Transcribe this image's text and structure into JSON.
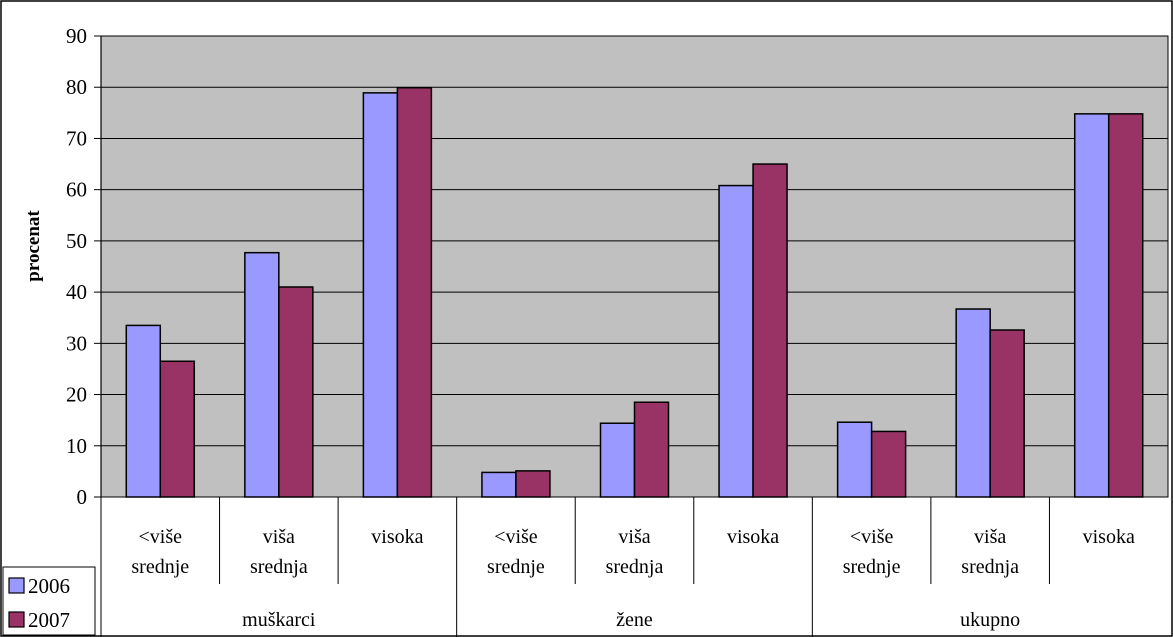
{
  "chart_data": {
    "type": "bar",
    "ylabel": "procenat",
    "ylim": [
      0,
      90
    ],
    "ytick_step": 10,
    "grid": true,
    "legend_placement": "bottom-left",
    "groups": [
      {
        "name": "muškarci",
        "categories": [
          [
            "<više",
            "srednje"
          ],
          [
            "viša",
            "srednja"
          ],
          [
            "visoka"
          ]
        ]
      },
      {
        "name": "žene",
        "categories": [
          [
            "<više",
            "srednje"
          ],
          [
            "viša",
            "srednja"
          ],
          [
            "visoka"
          ]
        ]
      },
      {
        "name": "ukupno",
        "categories": [
          [
            "<više",
            "srednje"
          ],
          [
            "viša",
            "srednja"
          ],
          [
            "visoka"
          ]
        ]
      }
    ],
    "series": [
      {
        "name": "2006",
        "color": "#9999ff",
        "values": [
          33.5,
          47.7,
          78.9,
          4.8,
          14.4,
          60.8,
          14.6,
          36.7,
          74.8
        ]
      },
      {
        "name": "2007",
        "color": "#993366",
        "values": [
          26.5,
          41.0,
          79.9,
          5.1,
          18.5,
          65.0,
          12.8,
          32.6,
          74.8
        ]
      }
    ],
    "plot_background": "#c0c0c0"
  }
}
